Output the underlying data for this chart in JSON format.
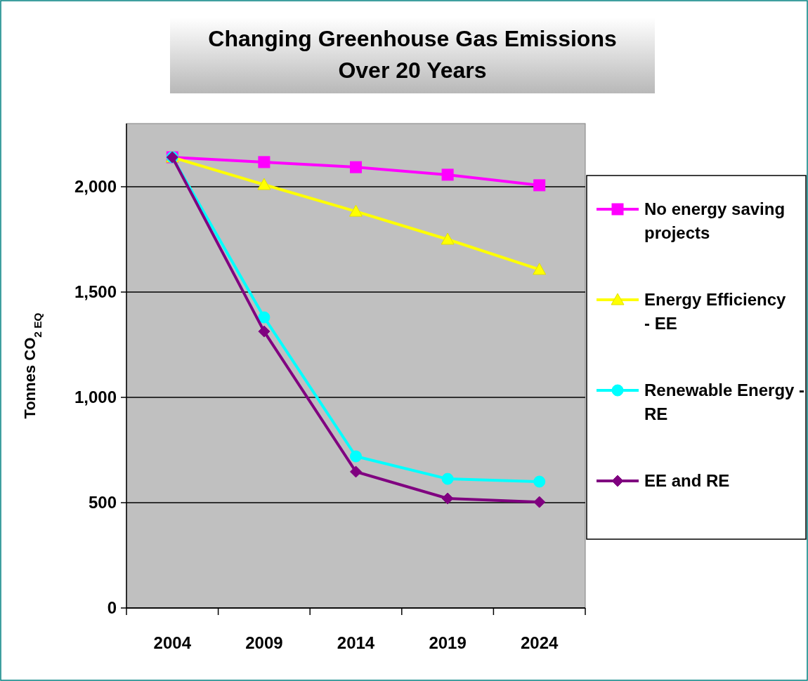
{
  "chart_data": {
    "type": "line",
    "title": "Changing Greenhouse Gas Emissions Over 20 Years",
    "ylabel": "Tonnes CO$_{2 EQ}$",
    "categories": [
      "2004",
      "2009",
      "2014",
      "2019",
      "2024"
    ],
    "ylim": [
      0,
      2300
    ],
    "yticks": [
      {
        "value": 0,
        "label": "0"
      },
      {
        "value": 500,
        "label": "500"
      },
      {
        "value": 1000,
        "label": "1,000"
      },
      {
        "value": 1500,
        "label": "1,500"
      },
      {
        "value": 2000,
        "label": "2,000"
      }
    ],
    "grid": "y",
    "legend": "right",
    "series": [
      {
        "name": "No energy saving projects",
        "color": "#ff00ff",
        "marker": "square",
        "values": [
          2140,
          2117,
          2093,
          2057,
          2007
        ]
      },
      {
        "name": "Energy Efficiency - EE",
        "color": "#ffff00",
        "marker": "triangle",
        "values": [
          2140,
          2010,
          1883,
          1750,
          1607
        ]
      },
      {
        "name": "Renewable Energy - RE",
        "color": "#00ffff",
        "marker": "circle",
        "values": [
          2140,
          1380,
          720,
          613,
          600
        ]
      },
      {
        "name": "EE and RE",
        "color": "#800080",
        "marker": "diamond",
        "values": [
          2140,
          1313,
          647,
          520,
          503
        ]
      }
    ]
  }
}
